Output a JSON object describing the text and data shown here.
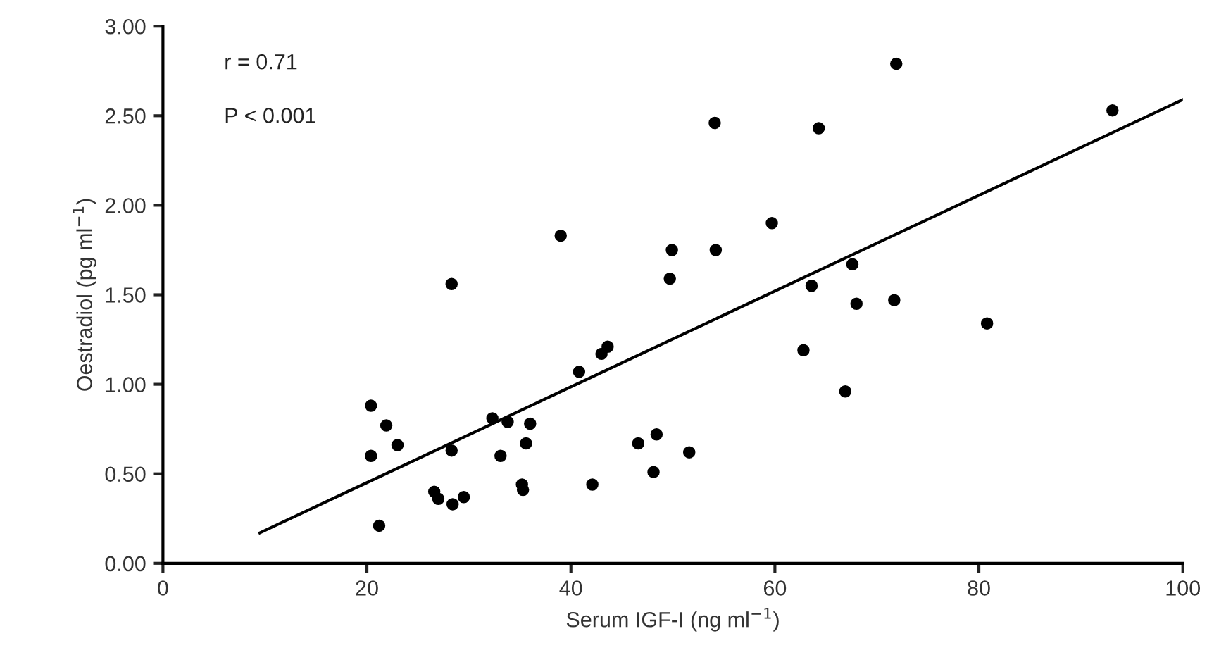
{
  "chart_data": {
    "type": "scatter",
    "xlabel": "Serum IGF-I (ng ml$^{−1}$)",
    "ylabel": "Oestradiol (pg ml$^{−1}$)",
    "xlim": [
      0,
      100
    ],
    "xticks": [
      0,
      20,
      40,
      60,
      80,
      100
    ],
    "ylim": [
      0,
      3
    ],
    "yticks": [
      {
        "value": 0,
        "label": "0.00"
      },
      {
        "value": 0.5,
        "label": "0.50"
      },
      {
        "value": 1,
        "label": "1.00"
      },
      {
        "value": 1.5,
        "label": "1.50"
      },
      {
        "value": 2,
        "label": "2.00"
      },
      {
        "value": 2.5,
        "label": "2.50"
      },
      {
        "value": 3,
        "label": "3.00"
      }
    ],
    "grid": false,
    "legend": false,
    "annotations": [
      "r = 0.71",
      "P < 0.001"
    ],
    "series": [
      {
        "marker": "circle",
        "color": "#000000",
        "x": [
          20.4,
          21.9,
          23.0,
          20.4,
          21.2,
          28.3,
          26.6,
          27.0,
          28.4,
          29.5,
          32.3,
          33.8,
          33.1,
          28.3,
          39.0,
          49.9,
          54.2,
          59.7,
          49.7,
          43.6,
          43.0,
          40.8,
          36.0,
          35.6,
          35.2,
          35.3,
          42.1,
          46.6,
          48.4,
          51.6,
          48.1,
          71.9,
          93.1,
          54.1,
          64.3,
          67.6,
          63.6,
          68.0,
          71.7,
          80.8,
          62.8,
          66.9
        ],
        "values": [
          0.88,
          0.77,
          0.66,
          0.6,
          0.21,
          0.63,
          0.4,
          0.36,
          0.33,
          0.37,
          0.81,
          0.79,
          0.6,
          1.56,
          1.83,
          1.75,
          1.75,
          1.9,
          1.59,
          1.21,
          1.17,
          1.07,
          0.78,
          0.67,
          0.44,
          0.41,
          0.44,
          0.67,
          0.72,
          0.62,
          0.51,
          2.79,
          2.53,
          2.46,
          2.43,
          1.67,
          1.55,
          1.45,
          1.47,
          1.34,
          1.19,
          0.96
        ]
      },
      {
        "type": "line",
        "marker": "none",
        "color": "#000000",
        "x": [
          9.5,
          100
        ],
        "values": [
          0.17,
          2.59
        ]
      }
    ]
  }
}
